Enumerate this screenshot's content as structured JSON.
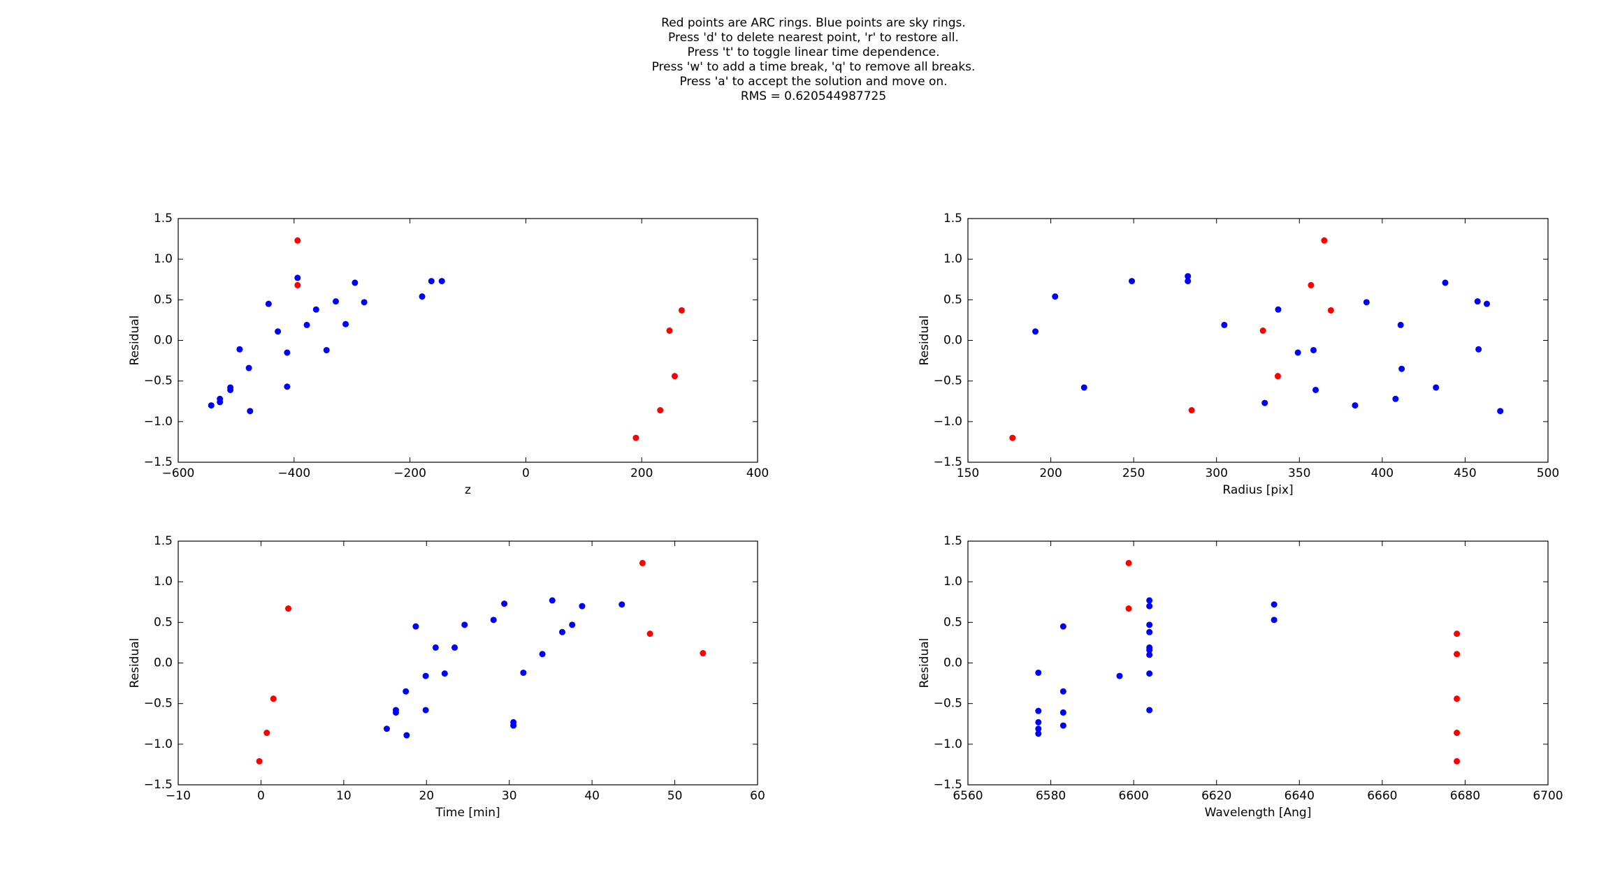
{
  "figure_title": [
    "Red points are ARC rings. Blue points are sky rings.",
    "Press 'd' to delete nearest point, 'r' to restore all.",
    "Press 't' to toggle linear time dependence.",
    "Press 'w' to add a time break, 'q' to remove all breaks.",
    "Press 'a' to accept the solution and move on.",
    "RMS = 0.620544987725"
  ],
  "chart_data": [
    {
      "type": "scatter",
      "x_label": "z",
      "y_label": "Residual",
      "xlim": [
        -600,
        400
      ],
      "xticks": [
        {
          "value": -600,
          "label": "−600"
        },
        {
          "value": -400,
          "label": "−400"
        },
        {
          "value": -200,
          "label": "−200"
        },
        0,
        200,
        400
      ],
      "ylim": [
        -1.5,
        1.5
      ],
      "yticks": [
        {
          "value": -1.5,
          "label": "−1.5"
        },
        {
          "value": -1,
          "label": "−1.0"
        },
        {
          "value": -0.5,
          "label": "−0.5"
        },
        {
          "value": 0,
          "label": "0.0"
        },
        0.5,
        {
          "value": 1,
          "label": "1.0"
        },
        1.5
      ],
      "series": [
        {
          "color": "#0000ff",
          "x": [
            -543,
            -528,
            -528,
            -510,
            -510,
            -494,
            -478,
            -476,
            -444,
            -428,
            -412,
            -412,
            -394,
            -378,
            -362,
            -344,
            -328,
            -311,
            -295,
            -279,
            -179,
            -163,
            -145
          ],
          "values": [
            -0.8,
            -0.72,
            -0.76,
            -0.58,
            -0.61,
            -0.11,
            -0.34,
            -0.87,
            0.45,
            0.11,
            -0.15,
            -0.57,
            0.77,
            0.19,
            0.38,
            -0.12,
            0.48,
            0.2,
            0.71,
            0.47,
            0.54,
            0.73,
            0.73
          ]
        },
        {
          "color": "#ff0000",
          "x": [
            -394,
            -394,
            190,
            232,
            248,
            257,
            269
          ],
          "values": [
            1.23,
            0.68,
            -1.2,
            -0.86,
            0.12,
            -0.44,
            0.37
          ]
        }
      ]
    },
    {
      "type": "scatter",
      "x_label": "Radius [pix]",
      "y_label": "Residual",
      "xlim": [
        150,
        500
      ],
      "xticks": [
        150,
        200,
        250,
        300,
        350,
        400,
        450,
        500
      ],
      "ylim": [
        -1.5,
        1.5
      ],
      "yticks": [
        {
          "value": -1.5,
          "label": "−1.5"
        },
        {
          "value": -1,
          "label": "−1.0"
        },
        {
          "value": -0.5,
          "label": "−0.5"
        },
        {
          "value": 0,
          "label": "0.0"
        },
        0.5,
        {
          "value": 1,
          "label": "1.0"
        },
        1.5
      ],
      "series": [
        {
          "color": "#0000ff",
          "x": [
            190.7,
            202.6,
            220.1,
            248.9,
            282.7,
            282.7,
            304.7,
            329.1,
            337.2,
            349.1,
            358.5,
            359.8,
            383.6,
            390.5,
            408.0,
            411.1,
            411.7,
            432.4,
            438.0,
            457.5,
            458.1,
            463.1,
            471.2
          ],
          "values": [
            0.11,
            0.54,
            -0.58,
            0.73,
            0.79,
            0.73,
            0.19,
            -0.77,
            0.38,
            -0.15,
            -0.12,
            -0.61,
            -0.8,
            0.47,
            -0.72,
            0.19,
            -0.35,
            -0.58,
            0.71,
            0.48,
            -0.11,
            0.45,
            -0.87
          ]
        },
        {
          "color": "#ff0000",
          "x": [
            176.9,
            285,
            328,
            337,
            357,
            365,
            369
          ],
          "values": [
            -1.2,
            -0.86,
            0.12,
            -0.44,
            0.68,
            1.23,
            0.37
          ]
        }
      ]
    },
    {
      "type": "scatter",
      "x_label": "Time [min]",
      "y_label": "Residual",
      "xlim": [
        -10,
        60
      ],
      "xticks": [
        {
          "value": -10,
          "label": "−10"
        },
        0,
        10,
        20,
        30,
        40,
        50,
        60
      ],
      "ylim": [
        -1.5,
        1.5
      ],
      "yticks": [
        {
          "value": -1.5,
          "label": "−1.5"
        },
        {
          "value": -1,
          "label": "−1.0"
        },
        {
          "value": -0.5,
          "label": "−0.5"
        },
        {
          "value": 0,
          "label": "0.0"
        },
        0.5,
        {
          "value": 1,
          "label": "1.0"
        },
        1.5
      ],
      "series": [
        {
          "color": "#0000ff",
          "x": [
            15.2,
            16.3,
            16.3,
            17.5,
            17.6,
            18.7,
            19.9,
            19.9,
            21.1,
            22.2,
            23.4,
            24.6,
            28.1,
            29.4,
            30.5,
            30.5,
            31.7,
            34.0,
            35.2,
            36.4,
            37.6,
            38.8,
            43.6
          ],
          "values": [
            -0.81,
            -0.58,
            -0.61,
            -0.35,
            -0.89,
            0.45,
            -0.16,
            -0.58,
            0.19,
            -0.13,
            0.19,
            0.47,
            0.53,
            0.73,
            -0.73,
            -0.77,
            -0.12,
            0.11,
            0.77,
            0.38,
            0.47,
            0.7,
            0.72
          ]
        },
        {
          "color": "#ff0000",
          "x": [
            -0.2,
            0.7,
            1.5,
            3.3,
            46.1,
            47.0,
            53.4
          ],
          "values": [
            -1.21,
            -0.86,
            -0.44,
            0.67,
            1.23,
            0.36,
            0.12
          ]
        }
      ]
    },
    {
      "type": "scatter",
      "x_label": "Wavelength [Ang]",
      "y_label": "Residual",
      "xlim": [
        6560,
        6700
      ],
      "xticks": [
        6560,
        6580,
        6600,
        6620,
        6640,
        6660,
        6680,
        6700
      ],
      "ylim": [
        -1.5,
        1.5
      ],
      "yticks": [
        {
          "value": -1.5,
          "label": "−1.5"
        },
        {
          "value": -1,
          "label": "−1.0"
        },
        {
          "value": -0.5,
          "label": "−0.5"
        },
        {
          "value": 0,
          "label": "0.0"
        },
        0.5,
        {
          "value": 1,
          "label": "1.0"
        },
        1.5
      ],
      "series": [
        {
          "color": "#0000ff",
          "x": [
            6577.0,
            6577.0,
            6577.0,
            6577.0,
            6577.0,
            6583.0,
            6583.0,
            6583.0,
            6583.0,
            6596.6,
            6603.8,
            6603.8,
            6603.8,
            6603.8,
            6603.8,
            6603.8,
            6603.8,
            6603.8,
            6603.8,
            6633.9,
            6633.9
          ],
          "values": [
            -0.12,
            -0.59,
            -0.73,
            -0.81,
            -0.87,
            0.45,
            -0.35,
            -0.61,
            -0.77,
            -0.16,
            0.77,
            0.7,
            0.47,
            0.38,
            0.19,
            0.16,
            0.1,
            -0.13,
            -0.58,
            0.72,
            0.53
          ]
        },
        {
          "color": "#ff0000",
          "x": [
            6598.8,
            6598.8,
            6678.0,
            6678.0,
            6678.0,
            6678.0,
            6678.0
          ],
          "values": [
            1.23,
            0.67,
            0.36,
            0.11,
            -0.44,
            -0.86,
            -1.21
          ]
        }
      ]
    }
  ]
}
